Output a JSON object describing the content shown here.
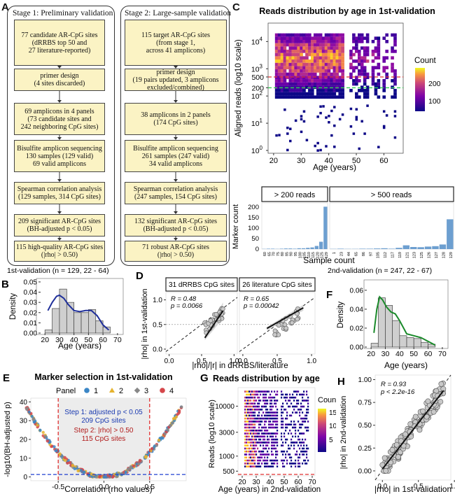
{
  "panels": {
    "A": "A",
    "B": "B",
    "C": "C",
    "D": "D",
    "E": "E",
    "F": "F",
    "G": "G",
    "H": "H"
  },
  "stage1": {
    "title": "Stage 1: Preliminary validation",
    "boxes": [
      "77 candidate AR-CpG sites\n(dRRBS top 50 and\n27 literature-reported)",
      "primer design\n(4 sites discarded)",
      "69 amplicons in 4 panels\n(73 candidate sites and\n242 neighboring CpG sites)",
      "Bisulfite amplicon sequencing\n130 samples (129 valid)\n69 valid amplicons",
      "Spearman correlation analysis\n(129 samples, 314 CpG sites)",
      "209 significant AR-CpG sites\n(BH-adjusted p < 0.05)",
      "115 high-quality AR-CpG sites\n(|rho| > 0.50)"
    ]
  },
  "stage2": {
    "title": "Stage 2: Large-sample validation",
    "boxes": [
      "115 target AR-CpG sites\n(from stage 1,\nacross 41 amplicons)",
      "primer design\n(19 pairs updated, 3 amplicons\nexcluded/combined)",
      "38 amplicons in 2 panels\n(174 CpG sites)",
      "Bisulfite amplicon sequencing\n261 samples (247 valid)\n34 valid amplicons",
      "Spearman correlation analysis\n(247 samples, 154 CpG sites)",
      "132 significant AR-CpG sites\n(BH-adjusted p < 0.05)",
      "71 robust AR-CpG sites\n(|rho| > 0.50)"
    ]
  },
  "panelC": {
    "title": "Reads distribution by age in 1st-validation",
    "ylabel": "Aligned reads (log10 scale)",
    "xlabel": "Age (years)",
    "legend_title": "Count",
    "legend_ticks": [
      "200",
      "100"
    ],
    "yticks_power": [
      "10",
      "10",
      "10",
      "10",
      "10"
    ],
    "yticks_exp": [
      "4",
      "3",
      "2",
      "1",
      "0"
    ],
    "yticks_extra": [
      "500",
      "200"
    ],
    "xticks": [
      "20",
      "30",
      "40",
      "50",
      "60"
    ],
    "hline_red": 500,
    "hline_green": 200
  },
  "panelCbottom": {
    "ylabel": "Marker count",
    "xlabel": "Sample count",
    "facets": [
      "> 200 reads",
      "> 500 reads"
    ],
    "yticks": [
      "200",
      "150",
      "100",
      "50",
      "0"
    ],
    "left_x": [
      "60",
      "65",
      "70",
      "75",
      "80",
      "85",
      "90",
      "95",
      "100",
      "105",
      "110",
      "115",
      "120",
      "125",
      "129"
    ],
    "left_vals": [
      1,
      2,
      2,
      1,
      2,
      3,
      3,
      2,
      4,
      4,
      6,
      8,
      15,
      35,
      202
    ],
    "right_x": [
      "1",
      "23",
      "44",
      "65",
      "86",
      "97",
      "105",
      "112",
      "117",
      "119",
      "121",
      "123",
      "125",
      "126",
      "127",
      "128",
      "129"
    ],
    "right_vals": [
      1,
      2,
      1,
      1,
      2,
      2,
      3,
      4,
      2,
      6,
      18,
      10,
      9,
      12,
      14,
      22,
      142
    ]
  },
  "panelB": {
    "title": "1st-validation (n = 129, 22 - 64)",
    "ylabel": "Density",
    "xlabel": "Age (years)",
    "yticks": [
      "0.05",
      "0.04",
      "0.03",
      "0.02",
      "0.01",
      "0.00"
    ],
    "xticks": [
      "20",
      "30",
      "40",
      "50",
      "60",
      "70"
    ],
    "bins": [
      20,
      25,
      30,
      35,
      40,
      45,
      50,
      55,
      60,
      65
    ],
    "heights": [
      0.003,
      0.024,
      0.043,
      0.03,
      0.02,
      0.02,
      0.023,
      0.012,
      0.006
    ]
  },
  "panelD": {
    "ylabel": "|rho| in 1st-validation",
    "xlabel": "|rho|/|r| in dRRBS/literature",
    "facet1": "31 dRRBS CpG sites",
    "facet2": "26 literature CpG sites",
    "r1": "R = 0.48",
    "p1": "p = 0.0066",
    "r2": "R = 0.65",
    "p2": "p = 0.00042",
    "yticks": [
      "1.0",
      "0.5",
      "0.0"
    ],
    "xticks1": [
      "0.0",
      "0.5",
      "1.0"
    ],
    "xticks2": [
      "0.0",
      "0.5",
      "1.0"
    ]
  },
  "panelF": {
    "title": "2nd-validation (n = 247, 22 - 67)",
    "ylabel": "Density",
    "xlabel": "Age (years)",
    "yticks": [
      "0.06",
      "0.04",
      "0.02",
      "0.00"
    ],
    "xticks": [
      "20",
      "30",
      "40",
      "50",
      "60",
      "70"
    ],
    "heights": [
      0.004,
      0.052,
      0.044,
      0.028,
      0.012,
      0.01,
      0.009,
      0.005,
      0.003
    ]
  },
  "panelE": {
    "title": "Marker selection in 1st-validation",
    "legend_label": "Panel",
    "legend_items": [
      "1",
      "2",
      "3",
      "4"
    ],
    "legend_colors": [
      "#3b86c6",
      "#e6b32e",
      "#888888",
      "#d5464a"
    ],
    "ylabel": "-log10(BH-adjusted p)",
    "xlabel": "Correlation (rho values)",
    "step1": "Step 1: adjusted p < 0.05",
    "step1b": "209 CpG sites",
    "step2": "Step 2: |rho| > 0.50",
    "step2b": "115 CpG sites",
    "yticks": [
      "40",
      "30",
      "20",
      "10",
      "0"
    ],
    "xticks": [
      "-0.5",
      "0.0",
      "0.5"
    ]
  },
  "panelG": {
    "title": "Reads distribution by age",
    "ylabel": "Reads (log10 scale)",
    "xlabel": "Age (years) in 2nd-validation",
    "legend_title": "Count",
    "legend_ticks": [
      "15",
      "10",
      "5"
    ],
    "yticks": [
      "10000",
      "3000",
      "1000",
      "500"
    ],
    "xticks": [
      "20",
      "30",
      "40",
      "50",
      "60",
      "70"
    ]
  },
  "panelH": {
    "ylabel": "|rho| in 2nd-validation",
    "xlabel": "|rho| in 1st-validation",
    "r": "R = 0.93",
    "p": "p < 2.2e-16",
    "yticks": [
      "1.00",
      "0.75",
      "0.50",
      "0.25",
      "0.00"
    ],
    "xticks": [
      "0.0",
      "0.5",
      "1.0"
    ]
  }
}
